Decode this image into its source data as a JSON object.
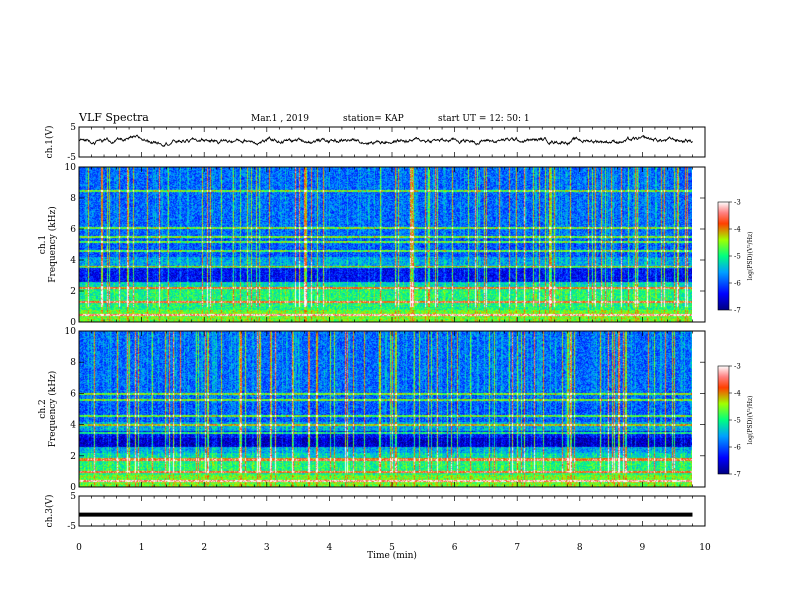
{
  "header": {
    "title": "VLF Spectra",
    "date": "Mar.1 , 2019",
    "station": "station= KAP",
    "start": "start UT = 12: 50: 1"
  },
  "chart_data": [
    {
      "type": "line",
      "panel": "ch1-waveform",
      "ylabel": "ch.1(V)",
      "ylim": [
        -5,
        5
      ],
      "yticks": [
        "5",
        "-5"
      ],
      "xlim": [
        0,
        10
      ],
      "description_values": {
        "mean_level": 0.5,
        "fluctuation": 1.5,
        "end_time": 9.8
      }
    },
    {
      "type": "heatmap",
      "panel": "ch1-spectrogram",
      "ylabel": "ch.1\nFrequency (kHz)",
      "ylabel_top": "ch.1",
      "ylabel_bottom": "Frequency (kHz)",
      "ylim": [
        0,
        10
      ],
      "yticks": [
        "0",
        "2",
        "4",
        "6",
        "8",
        "10"
      ],
      "xlim": [
        0,
        10
      ],
      "colorbar": {
        "label": "log(PSD)(V²/Hz)",
        "range": [
          -7,
          -3
        ],
        "ticks": [
          "-3",
          "-4",
          "-5",
          "-6",
          "-7"
        ]
      }
    },
    {
      "type": "heatmap",
      "panel": "ch2-spectrogram",
      "ylabel": "ch.2\nFrequency (kHz)",
      "ylabel_top": "ch.2",
      "ylabel_bottom": "Frequency (kHz)",
      "ylim": [
        0,
        10
      ],
      "yticks": [
        "0",
        "2",
        "4",
        "6",
        "8",
        "10"
      ],
      "xlim": [
        0,
        10
      ],
      "colorbar": {
        "label": "log(PSD)(V²/Hz)",
        "range": [
          -7,
          -3
        ],
        "ticks": [
          "-3",
          "-4",
          "-5",
          "-6",
          "-7"
        ]
      }
    },
    {
      "type": "line",
      "panel": "ch3-waveform",
      "ylabel": "ch.3(V)",
      "ylim": [
        -5,
        5
      ],
      "yticks": [
        "5",
        "-5"
      ],
      "xlim": [
        0,
        10
      ],
      "constant_value": -1.2
    }
  ],
  "xaxis": {
    "label": "Time (min)",
    "ticks": [
      "0",
      "1",
      "2",
      "3",
      "4",
      "5",
      "6",
      "7",
      "8",
      "9",
      "10"
    ]
  }
}
